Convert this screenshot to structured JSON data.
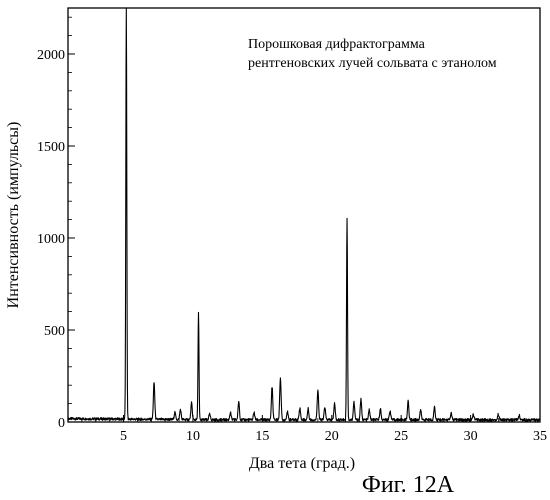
{
  "chart_data": {
    "type": "line",
    "annotation_lines": [
      "Порошковая дифрактограмма",
      "рентгеновских лучей сольвата с этанолом"
    ],
    "xlabel": "Два тета (град.)",
    "ylabel": "Интенсивность (импульсы)",
    "caption": "Фиг. 12А",
    "xlim": [
      1,
      35
    ],
    "ylim": [
      0,
      2250
    ],
    "x_ticks": [
      5,
      10,
      15,
      20,
      25,
      30,
      35
    ],
    "x_tick_labels": [
      "5",
      "10",
      "15",
      "20",
      "25",
      "30",
      "35"
    ],
    "y_ticks": [
      0,
      500,
      1000,
      1500,
      2000
    ],
    "y_tick_labels": [
      "0",
      "500",
      "1000",
      "1500",
      "2000"
    ],
    "baseline": 12,
    "peaks": [
      {
        "x": 5.2,
        "y": 2250
      },
      {
        "x": 7.2,
        "y": 200
      },
      {
        "x": 8.7,
        "y": 40
      },
      {
        "x": 9.1,
        "y": 55
      },
      {
        "x": 9.9,
        "y": 90
      },
      {
        "x": 10.4,
        "y": 580
      },
      {
        "x": 11.2,
        "y": 30
      },
      {
        "x": 12.7,
        "y": 40
      },
      {
        "x": 13.3,
        "y": 100
      },
      {
        "x": 14.4,
        "y": 40
      },
      {
        "x": 15.7,
        "y": 180
      },
      {
        "x": 16.3,
        "y": 230
      },
      {
        "x": 16.8,
        "y": 45
      },
      {
        "x": 17.7,
        "y": 65
      },
      {
        "x": 18.3,
        "y": 60
      },
      {
        "x": 19.0,
        "y": 165
      },
      {
        "x": 19.5,
        "y": 70
      },
      {
        "x": 20.2,
        "y": 90
      },
      {
        "x": 21.1,
        "y": 1100
      },
      {
        "x": 21.6,
        "y": 95
      },
      {
        "x": 22.1,
        "y": 110
      },
      {
        "x": 22.7,
        "y": 55
      },
      {
        "x": 23.5,
        "y": 60
      },
      {
        "x": 24.2,
        "y": 50
      },
      {
        "x": 25.5,
        "y": 100
      },
      {
        "x": 26.4,
        "y": 55
      },
      {
        "x": 27.4,
        "y": 70
      },
      {
        "x": 28.6,
        "y": 35
      },
      {
        "x": 30.2,
        "y": 30
      },
      {
        "x": 32.0,
        "y": 30
      },
      {
        "x": 33.5,
        "y": 25
      }
    ]
  }
}
